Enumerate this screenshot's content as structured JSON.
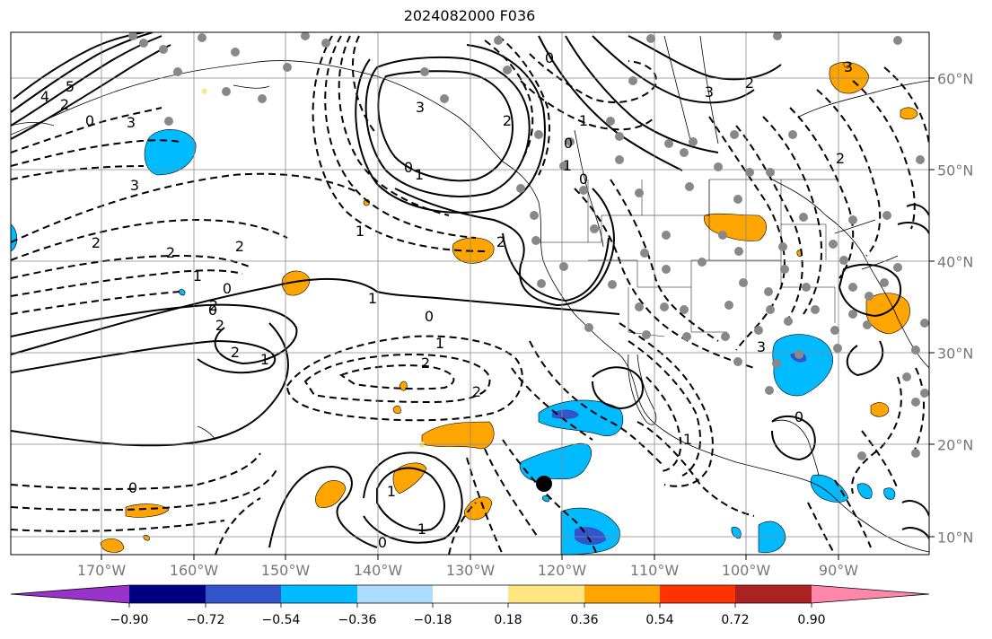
{
  "title": "2024082000 F036",
  "lon_labels": [
    "170°W",
    "160°W",
    "150°W",
    "140°W",
    "130°W",
    "120°W",
    "110°W",
    "100°W",
    "90°W"
  ],
  "lat_labels": [
    "60°N",
    "50°N",
    "40°N",
    "30°N",
    "20°N",
    "10°N"
  ],
  "colorbar": {
    "tick_labels": [
      "−0.90",
      "−0.72",
      "−0.54",
      "−0.36",
      "−0.18",
      "0.18",
      "0.36",
      "0.54",
      "0.72",
      "0.90"
    ],
    "colors": [
      "#9933cc",
      "#000080",
      "#3355cc",
      "#00bbff",
      "#aaddff",
      "#ffffff",
      "#ffe680",
      "#ffa500",
      "#ff3300",
      "#aa2222",
      "#ff88aa"
    ]
  },
  "contour_labels": [
    "5",
    "4",
    "2",
    "0",
    "3",
    "3",
    "2",
    "2",
    "1",
    "0",
    "2",
    "2",
    "1",
    "1",
    "2",
    "2",
    "0",
    "0",
    "1",
    "2",
    "2",
    "0",
    "3",
    "2",
    "1",
    "2",
    "1",
    "0",
    "1",
    "0",
    "0",
    "1",
    "3",
    "2",
    "0",
    "0",
    "2",
    "1",
    "1",
    "0",
    "3",
    "3",
    "1"
  ],
  "marker": {
    "color": "#000000"
  }
}
